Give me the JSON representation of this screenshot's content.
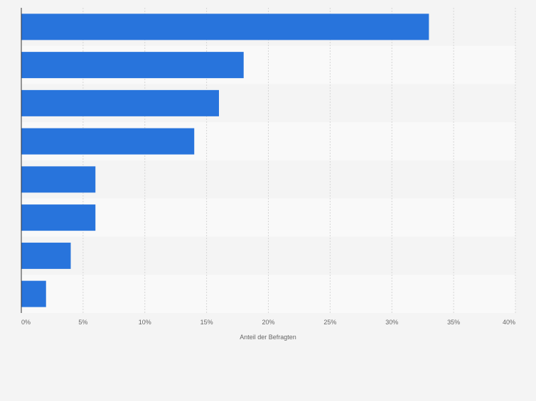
{
  "chart_data": {
    "type": "bar",
    "orientation": "horizontal",
    "categories": [
      "",
      "",
      "",
      "",
      "",
      "",
      "",
      ""
    ],
    "values": [
      33,
      18,
      16,
      14,
      6,
      6,
      4,
      2
    ],
    "xlabel": "Anteil der Befragten",
    "ylabel": "",
    "xlim": [
      0,
      40
    ],
    "xticks": [
      0,
      5,
      10,
      15,
      20,
      25,
      30,
      35,
      40
    ],
    "xtick_labels": [
      "0%",
      "5%",
      "10%",
      "15%",
      "20%",
      "25%",
      "30%",
      "35%",
      "40%"
    ],
    "grid": true,
    "legend": "none",
    "colors": {
      "bar": "#2874dc",
      "band_light": "#f9f9f9",
      "band_dark": "#f4f4f4",
      "background": "#f4f4f4",
      "grid": "#d6d6d6",
      "axis": "#333333",
      "text": "#666666"
    }
  }
}
